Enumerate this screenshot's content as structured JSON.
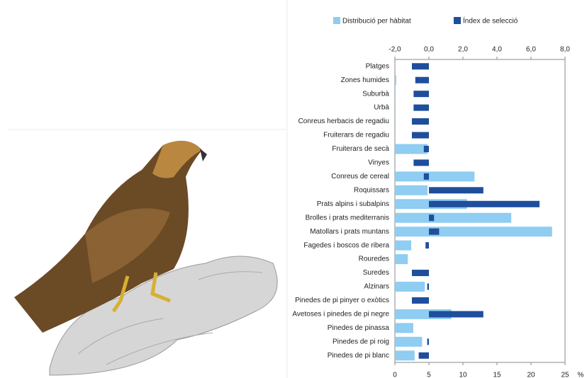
{
  "chart_data": {
    "type": "bar",
    "orientation": "horizontal",
    "categories": [
      "Platges",
      "Zones humides",
      "Suburbà",
      "Urbà",
      "Conreus herbacis de regadiu",
      "Fruiterars de regadiu",
      "Fruiterars de secà",
      "Vinyes",
      "Conreus de cereal",
      "Roquissars",
      "Prats alpins i subalpins",
      "Brolles i prats mediterranis",
      "Matollars i prats muntans",
      "Fagedes i boscos de ribera",
      "Rouredes",
      "Suredes",
      "Alzinars",
      "Pinedes de pi pinyer o exòtics",
      "Avetoses i pinedes de pi negre",
      "Pinedes de pinassa",
      "Pinedes de pi roig",
      "Pinedes de pi blanc"
    ],
    "series": [
      {
        "name": "Distribució per hàbitat",
        "color": "#8fcdf2",
        "values": [
          0,
          0.2,
          0.1,
          0.1,
          0.1,
          0.1,
          4.8,
          0.1,
          11.7,
          4.8,
          10.6,
          17.1,
          23.1,
          2.4,
          1.9,
          0,
          4.4,
          0.1,
          8.3,
          2.7,
          4.0,
          2.9
        ]
      },
      {
        "name": "Índex de selecció",
        "color": "#1f4e9c",
        "axis": "x2",
        "values": [
          -1.0,
          -0.8,
          -0.9,
          -0.9,
          -1.0,
          -1.0,
          -0.3,
          -0.9,
          -0.3,
          3.2,
          6.5,
          0.3,
          0.6,
          -0.2,
          0,
          -1.0,
          -0.1,
          -1.0,
          3.2,
          0,
          -0.1,
          -0.6
        ]
      }
    ],
    "xlim": [
      0,
      25
    ],
    "xticks": [
      0,
      5,
      10,
      15,
      20,
      25
    ],
    "x_label": "%",
    "x2lim": [
      -2,
      8
    ],
    "x2ticks": [
      {
        "value": -2,
        "label": "-2,0"
      },
      {
        "value": 0,
        "label": "0,0"
      },
      {
        "value": 2,
        "label": "2,0"
      },
      {
        "value": 4,
        "label": "4,0"
      },
      {
        "value": 6,
        "label": "6,0"
      },
      {
        "value": 8,
        "label": "8,0"
      }
    ],
    "legend": "top"
  }
}
